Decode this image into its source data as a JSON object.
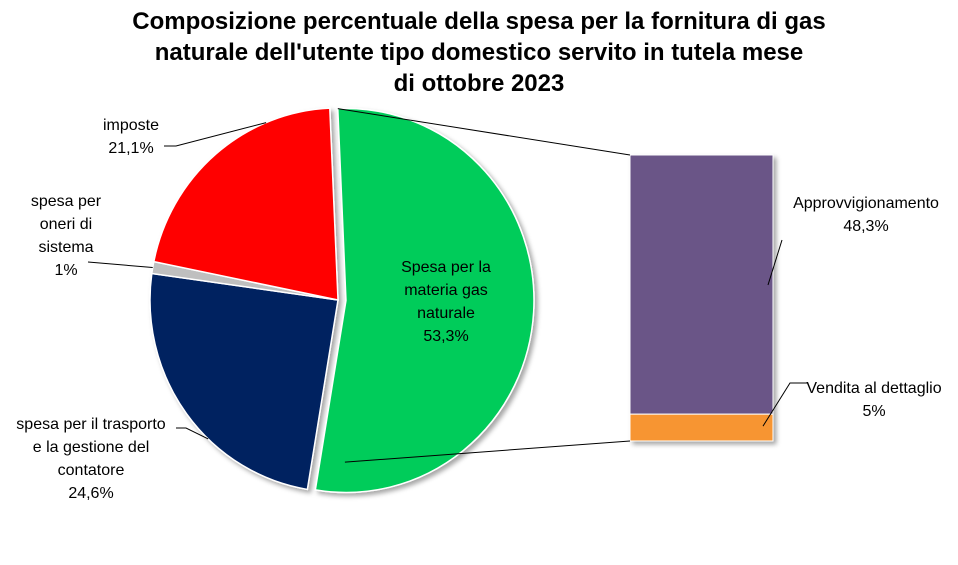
{
  "title_lines": [
    "Composizione percentuale della spesa per la fornitura di gas",
    "naturale dell'utente tipo domestico servito in tutela mese",
    "di ottobre 2023"
  ],
  "chart_data": [
    {
      "type": "pie",
      "title": "Composizione percentuale della spesa per la fornitura di gas naturale dell'utente tipo domestico servito in tutela mese di ottobre 2023",
      "categories": [
        "Spesa per la materia gas naturale",
        "spesa per il trasporto e la gestione del contatore",
        "spesa per oneri di sistema",
        "imposte"
      ],
      "values": [
        53.3,
        24.6,
        1,
        21.1
      ],
      "value_labels": [
        "53,3%",
        "24,6%",
        "1%",
        "21,1%"
      ],
      "label_lines": [
        [
          "Spesa per la",
          "materia gas",
          "naturale",
          "53,3%"
        ],
        [
          "spesa per il trasporto",
          "e la gestione del",
          "contatore",
          "24,6%"
        ],
        [
          "spesa per",
          "oneri di",
          "sistema",
          "1%"
        ],
        [
          "imposte",
          "21,1%"
        ]
      ],
      "colors": [
        "#00cc5a",
        "#002060",
        "#bfbfbf",
        "#ff0000"
      ]
    },
    {
      "type": "bar",
      "stacked": true,
      "categories": [
        "Approvvigionamento",
        "Vendita al dettaglio"
      ],
      "values": [
        48.3,
        5
      ],
      "value_labels": [
        "48,3%",
        "5%"
      ],
      "label_lines": [
        [
          "Approvvigionamento",
          "48,3%"
        ],
        [
          "Vendita al dettaglio",
          "5%"
        ]
      ],
      "colors": [
        "#6a5587",
        "#f79530"
      ]
    }
  ]
}
